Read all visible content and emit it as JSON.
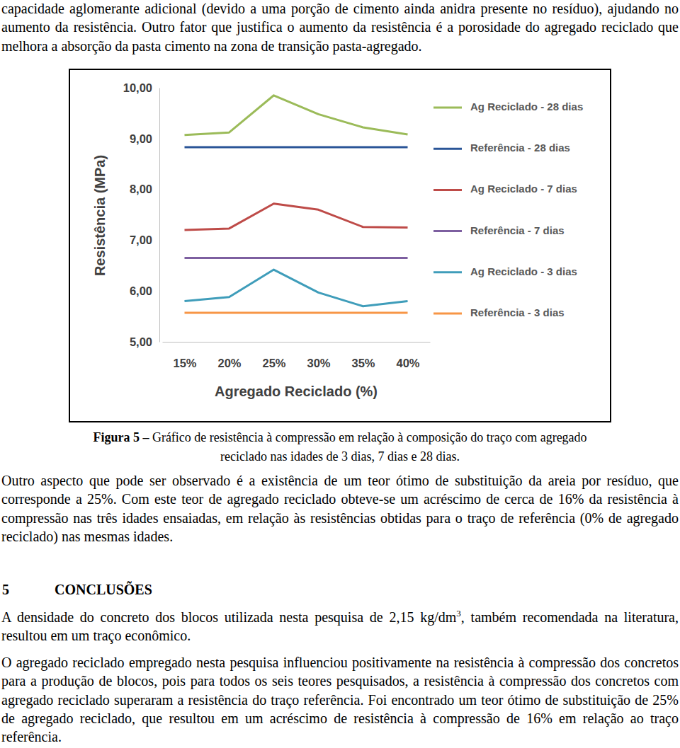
{
  "text_before": "capacidade aglomerante adicional (devido a uma porção de cimento ainda anidra presente no resíduo), ajudando no aumento da resistência. Outro fator que justifica o aumento da resistência é a porosidade do agregado reciclado que melhora a absorção da pasta cimento na zona de transição pasta-agregado.",
  "chart_data": {
    "type": "line",
    "x_label": "Agregado Reciclado (%)",
    "y_label": "Resistência (MPa)",
    "categories": [
      "15%",
      "20%",
      "25%",
      "30%",
      "35%",
      "40%"
    ],
    "ylim": [
      5,
      10
    ],
    "yticks": [
      {
        "value": 5,
        "label": "5,00"
      },
      {
        "value": 6,
        "label": "6,00"
      },
      {
        "value": 7,
        "label": "7,00"
      },
      {
        "value": 8,
        "label": "8,00"
      },
      {
        "value": 9,
        "label": "9,00"
      },
      {
        "value": 10,
        "label": "10,00"
      }
    ],
    "grid": false,
    "legend": "right",
    "series": [
      {
        "name": "Ag Reciclado - 28 dias",
        "color": "#9bbb59",
        "values": [
          9.07,
          9.12,
          9.85,
          9.48,
          9.22,
          9.08
        ]
      },
      {
        "name": "Referência - 28 dias",
        "color": "#2a5597",
        "values": [
          8.83,
          8.83,
          8.83,
          8.83,
          8.83,
          8.83
        ]
      },
      {
        "name": "Ag Reciclado - 7 dias",
        "color": "#be4b48",
        "values": [
          7.2,
          7.23,
          7.72,
          7.6,
          7.26,
          7.25
        ]
      },
      {
        "name": "Referência - 7 dias",
        "color": "#7d5fa0",
        "values": [
          6.65,
          6.65,
          6.65,
          6.65,
          6.65,
          6.65
        ]
      },
      {
        "name": "Ag Reciclado - 3 dias",
        "color": "#3f9dba",
        "values": [
          5.8,
          5.88,
          6.42,
          5.97,
          5.7,
          5.8
        ]
      },
      {
        "name": "Referência - 3 dias",
        "color": "#f79646",
        "values": [
          5.57,
          5.57,
          5.57,
          5.57,
          5.57,
          5.57
        ]
      }
    ]
  },
  "caption": {
    "label": "Figura 5 –",
    "text": "Gráfico de resistência à compressão em relação à composição do traço com agregado reciclado nas idades de 3 dias, 7 dias e 28 dias."
  },
  "text_after": "Outro aspecto que pode ser observado é a existência de um teor ótimo de substituição da areia por resíduo, que corresponde a 25%. Com este teor de agregado reciclado obteve-se um acréscimo de cerca de 16% da resistência à compressão nas três idades ensaiadas, em relação às resistências obtidas para o traço de referência (0% de agregado reciclado) nas mesmas idades.",
  "section": {
    "number": "5",
    "title": "CONCLUSÕES"
  },
  "conclusions": [
    {
      "text": "A densidade do concreto dos blocos utilizada nesta pesquisa de 2,15 kg/dm",
      "superscript": "3",
      "continuation": ", também recomendada na literatura, resultou em um traço econômico."
    },
    {
      "text": "O agregado reciclado empregado nesta pesquisa influenciou positivamente na resistência à compressão dos concretos para a produção de blocos, pois para todos os seis teores pesquisados, a resistência à compressão dos concretos com agregado reciclado superaram a resistência do traço referência. Foi encontrado um teor ótimo de substituição de 25% de agregado reciclado, que resultou em um acréscimo de resistência à compressão de 16% em relação ao traço referência."
    }
  ]
}
